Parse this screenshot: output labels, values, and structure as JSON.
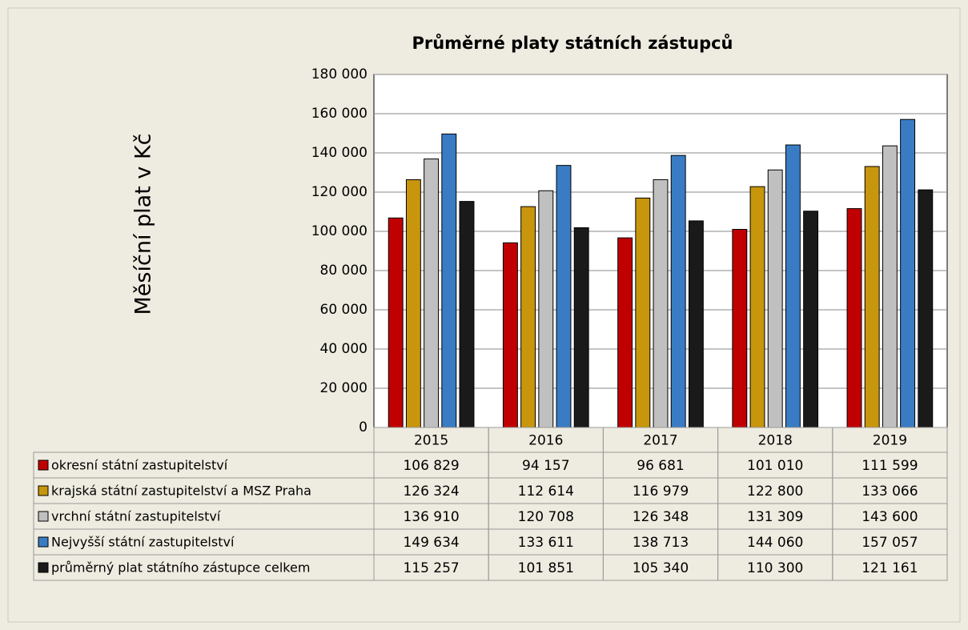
{
  "chart_data": {
    "type": "bar",
    "title": "Průměrné platy státních zástupců",
    "y_label": "Měsíční plat v Kč",
    "categories": [
      "2015",
      "2016",
      "2017",
      "2018",
      "2019"
    ],
    "series": [
      {
        "name": "okresní státní zastupitelství",
        "color": "#c00000",
        "values": [
          106829,
          94157,
          96681,
          101010,
          111599
        ],
        "value_labels": [
          "106 829",
          "94 157",
          "96 681",
          "101 010",
          "111 599"
        ]
      },
      {
        "name": "krajská státní zastupitelství a MSZ Praha",
        "color": "#c8960c",
        "values": [
          126324,
          112614,
          116979,
          122800,
          133066
        ],
        "value_labels": [
          "126 324",
          "112 614",
          "116 979",
          "122 800",
          "133 066"
        ]
      },
      {
        "name": "vrchní státní zastupitelství",
        "color": "#c0c0c0",
        "values": [
          136910,
          120708,
          126348,
          131309,
          143600
        ],
        "value_labels": [
          "136 910",
          "120 708",
          "126 348",
          "131 309",
          "143 600"
        ]
      },
      {
        "name": "Nejvyšší státní zastupitelství",
        "color": "#3a7cc4",
        "values": [
          149634,
          133611,
          138713,
          144060,
          157057
        ],
        "value_labels": [
          "149 634",
          "133 611",
          "138 713",
          "144 060",
          "157 057"
        ]
      },
      {
        "name": "průměrný plat státního zástupce celkem",
        "color": "#1a1a1a",
        "values": [
          115257,
          101851,
          105340,
          110300,
          121161
        ],
        "value_labels": [
          "115 257",
          "101 851",
          "105 340",
          "110 300",
          "121 161"
        ]
      }
    ],
    "ylim": [
      0,
      180000
    ],
    "yticks": [
      0,
      {
        "value": 20000,
        "label": "20 000"
      },
      {
        "value": 40000,
        "label": "40 000"
      },
      {
        "value": 60000,
        "label": "60 000"
      },
      {
        "value": 80000,
        "label": "80 000"
      },
      {
        "value": 100000,
        "label": "100 000"
      },
      {
        "value": 120000,
        "label": "120 000"
      },
      {
        "value": 140000,
        "label": "140 000"
      },
      {
        "value": 160000,
        "label": "160 000"
      },
      {
        "value": 180000,
        "label": "180 000"
      }
    ],
    "grid": true
  }
}
